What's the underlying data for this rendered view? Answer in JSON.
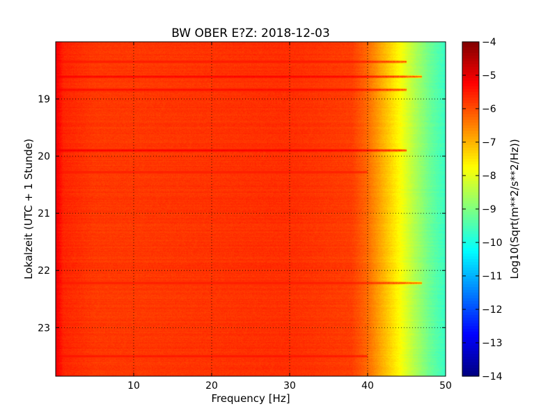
{
  "chart_data": {
    "type": "heatmap",
    "title": "BW OBER E?Z: 2018-12-03",
    "xlabel": "Frequency [Hz]",
    "ylabel": "Lokalzeit (UTC + 1 Stunde)",
    "xlim": [
      0,
      50
    ],
    "ylim": [
      18.0,
      23.85
    ],
    "y_inverted": true,
    "x_ticks": [
      10,
      20,
      30,
      40,
      50
    ],
    "x_tick_labels": [
      "10",
      "20",
      "30",
      "40",
      "50"
    ],
    "y_ticks": [
      19,
      20,
      21,
      22,
      23
    ],
    "y_tick_labels": [
      "19",
      "20",
      "21",
      "22",
      "23"
    ],
    "grid": true,
    "colormap": "jet",
    "colorbar": {
      "label": "Log10(Sqrt(m**2/s**2/Hz))",
      "range": [
        -14,
        -4
      ],
      "ticks": [
        -4,
        -5,
        -6,
        -7,
        -8,
        -9,
        -10,
        -11,
        -12,
        -13,
        -14
      ],
      "tick_labels": [
        "−4",
        "−5",
        "−6",
        "−7",
        "−8",
        "−9",
        "−10",
        "−11",
        "−12",
        "−13",
        "−14"
      ]
    },
    "spectral_profile": {
      "frequency_hz": [
        0,
        1,
        5,
        10,
        20,
        30,
        38,
        40,
        42,
        44,
        46,
        48,
        50
      ],
      "log10_amplitude": [
        -5.1,
        -5.6,
        -5.8,
        -5.8,
        -5.75,
        -5.7,
        -5.85,
        -6.3,
        -7.0,
        -7.7,
        -8.5,
        -9.2,
        -9.7
      ]
    },
    "bands": [
      {
        "time_h": 18.35,
        "f_from": 0,
        "f_to": 45,
        "log10_amplitude": -5.4
      },
      {
        "time_h": 18.61,
        "f_from": 0,
        "f_to": 47,
        "log10_amplitude": -5.1
      },
      {
        "time_h": 18.84,
        "f_from": 0,
        "f_to": 45,
        "log10_amplitude": -5.2
      },
      {
        "time_h": 19.9,
        "f_from": 0,
        "f_to": 45,
        "log10_amplitude": -5.0
      },
      {
        "time_h": 20.28,
        "f_from": 0,
        "f_to": 40,
        "log10_amplitude": -5.45
      },
      {
        "time_h": 22.22,
        "f_from": 0,
        "f_to": 47,
        "log10_amplitude": -5.45
      },
      {
        "time_h": 23.5,
        "f_from": 0,
        "f_to": 40,
        "log10_amplitude": -5.35
      }
    ]
  }
}
